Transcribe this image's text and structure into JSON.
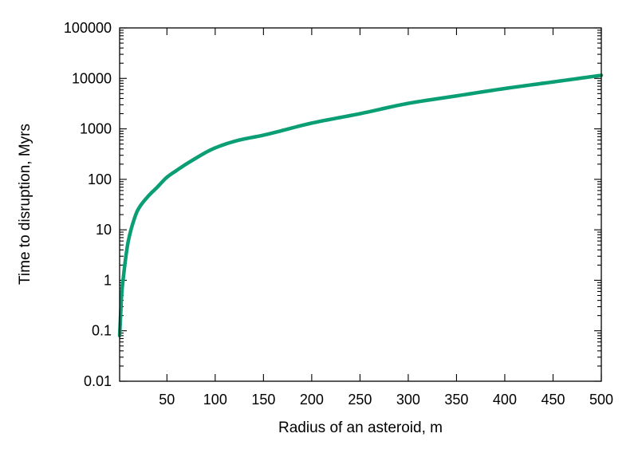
{
  "chart_data": {
    "type": "line",
    "title": "",
    "xlabel": "Radius of an asteroid, m",
    "ylabel": "Time to disruption, Myrs",
    "xlim": [
      1,
      500
    ],
    "ylim": [
      0.01,
      100000
    ],
    "y_scale": "log",
    "grid": false,
    "legend": "none",
    "x_ticks": [
      50,
      100,
      150,
      200,
      250,
      300,
      350,
      400,
      450,
      500
    ],
    "x_tick_labels": [
      "50",
      "100",
      "150",
      "200",
      "250",
      "300",
      "350",
      "400",
      "450",
      "500"
    ],
    "y_ticks": [
      0.01,
      0.1,
      1,
      10,
      100,
      1000,
      10000,
      100000
    ],
    "y_tick_labels": [
      "0.01",
      "0.1",
      "1",
      "10",
      "100",
      "1000",
      "10000",
      "100000"
    ],
    "series": [
      {
        "color": "#0a9e74",
        "x": [
          1,
          2,
          3,
          5,
          8,
          10,
          15,
          20,
          30,
          40,
          50,
          60,
          75,
          100,
          125,
          150,
          200,
          250,
          300,
          350,
          400,
          450,
          500
        ],
        "y": [
          0.08,
          0.2,
          0.5,
          1.2,
          3.5,
          6,
          14,
          25,
          45,
          70,
          110,
          150,
          230,
          420,
          600,
          750,
          1300,
          2000,
          3200,
          4500,
          6300,
          8500,
          11500
        ]
      }
    ]
  }
}
